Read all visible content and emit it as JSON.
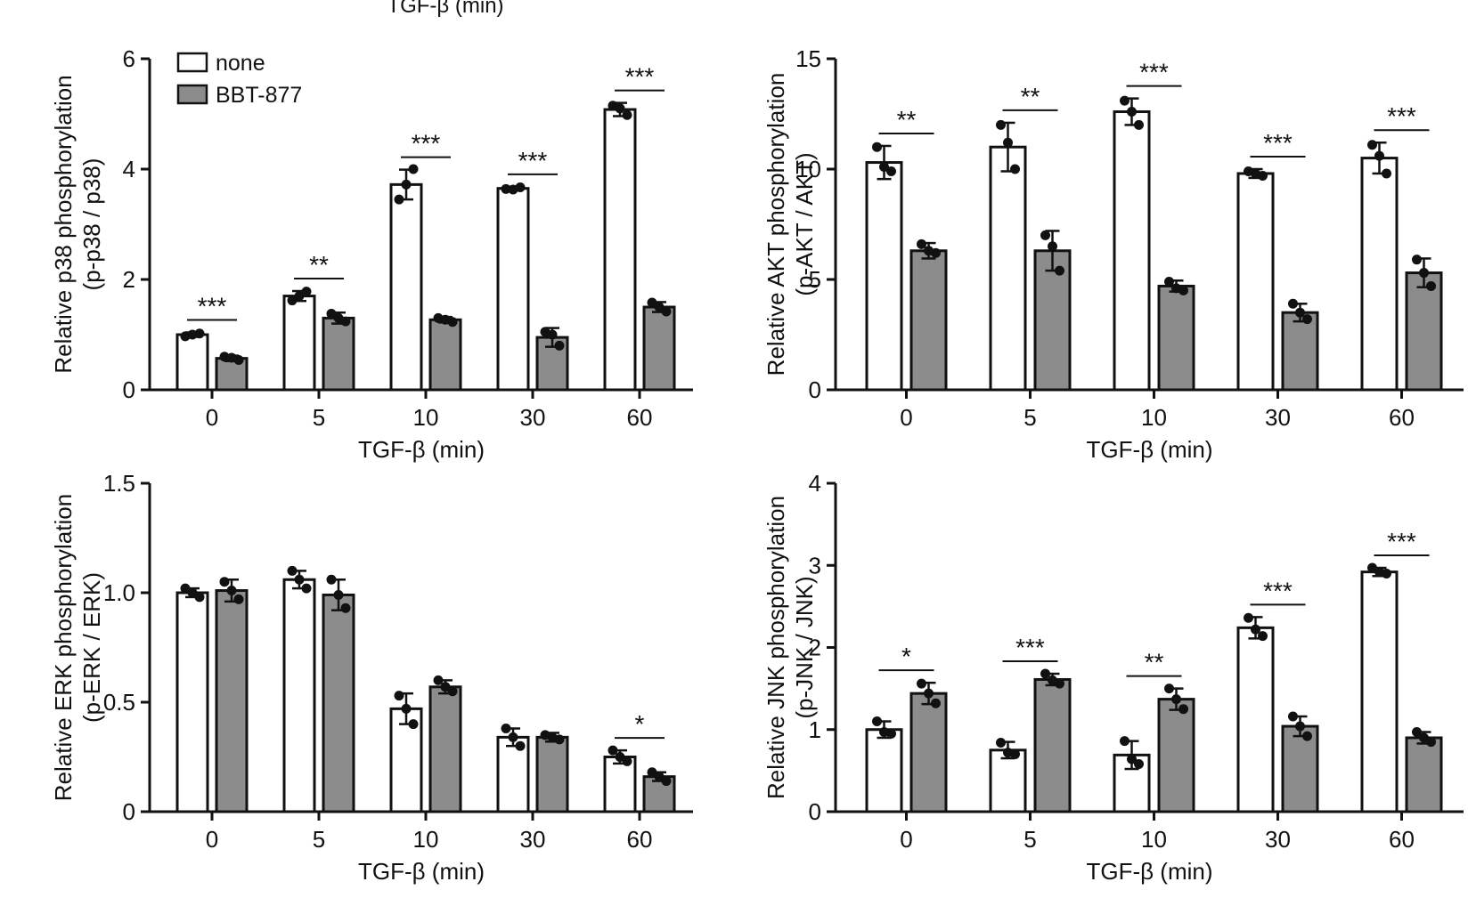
{
  "top_fragment_label": "TGF-β (min)",
  "colors": {
    "none": "#ffffff",
    "BBT-877": "#8c8c8c",
    "axis": "#111111",
    "outline": "#111111"
  },
  "chart_data": [
    {
      "id": "p38",
      "type": "bar",
      "xlabel": "TGF-β (min)",
      "ylabel_line1": "Relative p38 phosphorylation",
      "ylabel_line2": "(p-p38 / p38)",
      "categories": [
        "0",
        "5",
        "10",
        "30",
        "60"
      ],
      "ylim": [
        0,
        6
      ],
      "yticks": [
        0,
        2,
        4,
        6
      ],
      "ytick_labels": [
        "0",
        "2",
        "4",
        "6"
      ],
      "legend": {
        "placement": "top-left",
        "entries": [
          "none",
          "BBT-877"
        ]
      },
      "series": [
        {
          "name": "none",
          "values": [
            1.0,
            1.7,
            3.72,
            3.65,
            5.08
          ],
          "errors": [
            0.04,
            0.09,
            0.27,
            0.03,
            0.12
          ],
          "points": [
            [
              0.97,
              1.02,
              1.0
            ],
            [
              1.62,
              1.78,
              1.7
            ],
            [
              3.45,
              4.0,
              3.72
            ],
            [
              3.64,
              3.67,
              3.63
            ],
            [
              5.15,
              4.98,
              5.1
            ]
          ]
        },
        {
          "name": "BBT-877",
          "values": [
            0.57,
            1.3,
            1.27,
            0.95,
            1.5
          ],
          "errors": [
            0.05,
            0.1,
            0.05,
            0.17,
            0.09
          ],
          "points": [
            [
              0.6,
              0.54,
              0.58
            ],
            [
              1.38,
              1.24,
              1.3
            ],
            [
              1.3,
              1.23,
              1.27
            ],
            [
              1.05,
              0.8,
              1.0
            ],
            [
              1.58,
              1.42,
              1.5
            ]
          ]
        }
      ],
      "significance": [
        "***",
        "**",
        "***",
        "***",
        "***"
      ]
    },
    {
      "id": "akt",
      "type": "bar",
      "xlabel": "TGF-β (min)",
      "ylabel_line1": "Relative AKT phosphorylation",
      "ylabel_line2": "(p-AKT / AKT)",
      "categories": [
        "0",
        "5",
        "10",
        "30",
        "60"
      ],
      "ylim": [
        0,
        15
      ],
      "yticks": [
        0,
        5,
        10,
        15
      ],
      "ytick_labels": [
        "0",
        "5",
        "10",
        "15"
      ],
      "series": [
        {
          "name": "none",
          "values": [
            10.3,
            11.0,
            12.6,
            9.8,
            10.5
          ],
          "errors": [
            0.75,
            1.1,
            0.6,
            0.2,
            0.7
          ],
          "points": [
            [
              11.0,
              9.9,
              10.1
            ],
            [
              12.0,
              10.0,
              11.2
            ],
            [
              13.1,
              12.0,
              12.6
            ],
            [
              9.9,
              9.7,
              9.8
            ],
            [
              11.1,
              9.8,
              10.6
            ]
          ]
        },
        {
          "name": "BBT-877",
          "values": [
            6.3,
            6.3,
            4.7,
            3.5,
            5.3
          ],
          "errors": [
            0.35,
            0.9,
            0.25,
            0.4,
            0.65
          ],
          "points": [
            [
              6.6,
              6.2,
              6.3
            ],
            [
              7.0,
              5.4,
              6.5
            ],
            [
              4.9,
              4.5,
              4.6
            ],
            [
              3.9,
              3.2,
              3.5
            ],
            [
              5.9,
              4.7,
              5.3
            ]
          ]
        }
      ],
      "significance": [
        "**",
        "**",
        "***",
        "***",
        "***"
      ]
    },
    {
      "id": "erk",
      "type": "bar",
      "xlabel": "TGF-β (min)",
      "ylabel_line1": "Relative ERK phosphorylation",
      "ylabel_line2": "(p-ERK / ERK)",
      "categories": [
        "0",
        "5",
        "10",
        "30",
        "60"
      ],
      "ylim": [
        0,
        1.5
      ],
      "yticks": [
        0,
        0.5,
        1.0,
        1.5
      ],
      "ytick_labels": [
        "0",
        "0.5",
        "1.0",
        "1.5"
      ],
      "series": [
        {
          "name": "none",
          "values": [
            1.0,
            1.06,
            0.47,
            0.34,
            0.25
          ],
          "errors": [
            0.02,
            0.04,
            0.07,
            0.04,
            0.03
          ],
          "points": [
            [
              1.02,
              0.98,
              1.0
            ],
            [
              1.1,
              1.02,
              1.06
            ],
            [
              0.53,
              0.4,
              0.47
            ],
            [
              0.38,
              0.3,
              0.34
            ],
            [
              0.28,
              0.23,
              0.25
            ]
          ]
        },
        {
          "name": "BBT-877",
          "values": [
            1.01,
            0.99,
            0.57,
            0.34,
            0.16
          ],
          "errors": [
            0.05,
            0.07,
            0.03,
            0.02,
            0.02
          ],
          "points": [
            [
              1.05,
              0.97,
              1.01
            ],
            [
              1.06,
              0.93,
              0.99
            ],
            [
              0.6,
              0.55,
              0.57
            ],
            [
              0.35,
              0.33,
              0.34
            ],
            [
              0.18,
              0.14,
              0.16
            ]
          ]
        }
      ],
      "significance": [
        "",
        "",
        "",
        "",
        "*"
      ]
    },
    {
      "id": "jnk",
      "type": "bar",
      "xlabel": "TGF-β (min)",
      "ylabel_line1": "Relative JNK phosphorylation",
      "ylabel_line2": "(p-JNK / JNK)",
      "categories": [
        "0",
        "5",
        "10",
        "30",
        "60"
      ],
      "ylim": [
        0,
        4
      ],
      "yticks": [
        0,
        1,
        2,
        3,
        4
      ],
      "ytick_labels": [
        "0",
        "1",
        "2",
        "3",
        "4"
      ],
      "series": [
        {
          "name": "none",
          "values": [
            1.0,
            0.75,
            0.69,
            2.24,
            2.92
          ],
          "errors": [
            0.1,
            0.1,
            0.17,
            0.13,
            0.05
          ],
          "points": [
            [
              1.1,
              0.95,
              0.97
            ],
            [
              0.84,
              0.7,
              0.72
            ],
            [
              0.86,
              0.58,
              0.64
            ],
            [
              2.36,
              2.14,
              2.22
            ],
            [
              2.97,
              2.9,
              2.92
            ]
          ]
        },
        {
          "name": "BBT-877",
          "values": [
            1.44,
            1.61,
            1.37,
            1.04,
            0.9
          ],
          "errors": [
            0.13,
            0.07,
            0.13,
            0.12,
            0.07
          ],
          "points": [
            [
              1.56,
              1.32,
              1.44
            ],
            [
              1.68,
              1.56,
              1.6
            ],
            [
              1.5,
              1.25,
              1.37
            ],
            [
              1.16,
              0.92,
              1.04
            ],
            [
              0.97,
              0.85,
              0.9
            ]
          ]
        }
      ],
      "significance": [
        "*",
        "***",
        "**",
        "***",
        "***"
      ]
    }
  ]
}
